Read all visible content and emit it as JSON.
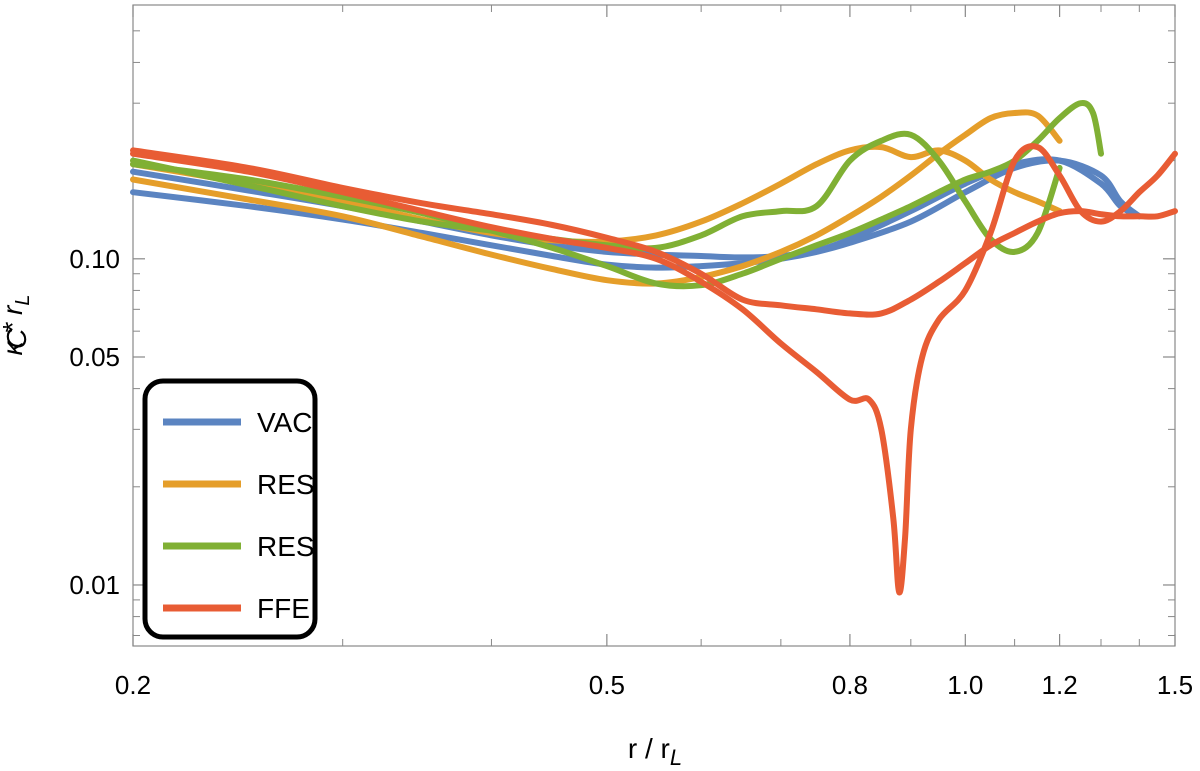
{
  "chart_data": {
    "type": "line",
    "title": "",
    "xlabel": "r / r",
    "xlabel_sub": "L",
    "ylabel": "κ * r",
    "ylabel_kappa_sub": "C",
    "ylabel_sub": "L",
    "xscale": "log",
    "yscale": "log",
    "xlim": [
      0.2,
      1.5
    ],
    "ylim": [
      0.0065,
      0.6
    ],
    "grid": false,
    "legend_position": "bottom-left",
    "x_ticks": [
      {
        "value": 0.2,
        "label": "0.2"
      },
      {
        "value": 0.5,
        "label": "0.5"
      },
      {
        "value": 0.8,
        "label": "0.8"
      },
      {
        "value": 1.0,
        "label": "1.0"
      },
      {
        "value": 1.2,
        "label": "1.2"
      },
      {
        "value": 1.5,
        "label": "1.5"
      }
    ],
    "x_minor_ticks": [
      0.3,
      0.4,
      0.6,
      0.7,
      0.9,
      1.1,
      1.3,
      1.4
    ],
    "y_ticks": [
      {
        "value": 0.01,
        "label": "0.01"
      },
      {
        "value": 0.05,
        "label": "0.05"
      },
      {
        "value": 0.1,
        "label": "0.10"
      }
    ],
    "y_minor_ticks": [
      0.007,
      0.008,
      0.009,
      0.02,
      0.03,
      0.04,
      0.06,
      0.07,
      0.08,
      0.09,
      0.2,
      0.3,
      0.4,
      0.5
    ],
    "series": [
      {
        "name": "VAC",
        "color": "#5b84c1",
        "x": [
          0.2,
          0.25,
          0.3,
          0.35,
          0.4,
          0.45,
          0.5,
          0.55,
          0.6,
          0.65,
          0.7,
          0.75,
          0.8,
          0.9,
          1.0,
          1.1,
          1.2,
          1.3,
          1.35,
          1.4
        ],
        "y": [
          0.16,
          0.145,
          0.132,
          0.12,
          0.11,
          0.102,
          0.096,
          0.094,
          0.095,
          0.097,
          0.1,
          0.105,
          0.112,
          0.13,
          0.16,
          0.19,
          0.2,
          0.18,
          0.15,
          0.135
        ]
      },
      {
        "name": "VAC",
        "color": "#5b84c1",
        "x": [
          0.2,
          0.25,
          0.3,
          0.35,
          0.4,
          0.45,
          0.5,
          0.55,
          0.6,
          0.65,
          0.7,
          0.75,
          0.8,
          0.9,
          1.0,
          1.1,
          1.2,
          1.3,
          1.35,
          1.4
        ],
        "y": [
          0.185,
          0.162,
          0.145,
          0.13,
          0.118,
          0.11,
          0.105,
          0.103,
          0.102,
          0.101,
          0.102,
          0.106,
          0.115,
          0.14,
          0.17,
          0.195,
          0.2,
          0.17,
          0.145,
          0.135
        ]
      },
      {
        "name": "RES",
        "color": "#e59e2a",
        "x": [
          0.2,
          0.25,
          0.3,
          0.35,
          0.4,
          0.45,
          0.5,
          0.55,
          0.6,
          0.65,
          0.7,
          0.75,
          0.8,
          0.85,
          0.9,
          0.95,
          1.0,
          1.05,
          1.1,
          1.15,
          1.2
        ],
        "y": [
          0.175,
          0.152,
          0.135,
          0.117,
          0.103,
          0.093,
          0.086,
          0.084,
          0.088,
          0.095,
          0.105,
          0.118,
          0.135,
          0.155,
          0.18,
          0.21,
          0.24,
          0.27,
          0.28,
          0.275,
          0.23
        ]
      },
      {
        "name": "RES",
        "color": "#e59e2a",
        "x": [
          0.2,
          0.25,
          0.3,
          0.35,
          0.4,
          0.45,
          0.5,
          0.55,
          0.6,
          0.65,
          0.7,
          0.75,
          0.8,
          0.85,
          0.9,
          0.95,
          1.0,
          1.05,
          1.1,
          1.15,
          1.2
        ],
        "y": [
          0.195,
          0.17,
          0.15,
          0.132,
          0.12,
          0.114,
          0.113,
          0.118,
          0.13,
          0.148,
          0.17,
          0.195,
          0.215,
          0.22,
          0.205,
          0.215,
          0.2,
          0.175,
          0.16,
          0.15,
          0.14
        ]
      },
      {
        "name": "RES",
        "color": "#80b034",
        "x": [
          0.2,
          0.25,
          0.3,
          0.35,
          0.4,
          0.45,
          0.5,
          0.55,
          0.6,
          0.65,
          0.7,
          0.75,
          0.8,
          0.85,
          0.9,
          0.95,
          1.0,
          1.05,
          1.1,
          1.15,
          1.2,
          1.25,
          1.28,
          1.3
        ],
        "y": [
          0.195,
          0.175,
          0.155,
          0.138,
          0.122,
          0.108,
          0.095,
          0.084,
          0.083,
          0.09,
          0.1,
          0.11,
          0.12,
          0.132,
          0.145,
          0.16,
          0.175,
          0.185,
          0.2,
          0.23,
          0.27,
          0.3,
          0.28,
          0.21
        ]
      },
      {
        "name": "RES",
        "color": "#80b034",
        "x": [
          0.2,
          0.25,
          0.3,
          0.35,
          0.4,
          0.45,
          0.5,
          0.55,
          0.6,
          0.65,
          0.7,
          0.75,
          0.8,
          0.85,
          0.9,
          0.95,
          1.0,
          1.05,
          1.1,
          1.15,
          1.2
        ],
        "y": [
          0.2,
          0.168,
          0.145,
          0.13,
          0.122,
          0.115,
          0.11,
          0.108,
          0.118,
          0.135,
          0.14,
          0.145,
          0.2,
          0.23,
          0.24,
          0.2,
          0.15,
          0.115,
          0.105,
          0.12,
          0.19
        ]
      },
      {
        "name": "FFE",
        "color": "#e85c34",
        "x": [
          0.2,
          0.25,
          0.3,
          0.35,
          0.4,
          0.45,
          0.5,
          0.55,
          0.6,
          0.65,
          0.7,
          0.75,
          0.8,
          0.83,
          0.85,
          0.87,
          0.88,
          0.89,
          0.9,
          0.92,
          0.95,
          1.0,
          1.05,
          1.1,
          1.15,
          1.2,
          1.25,
          1.3,
          1.35,
          1.4,
          1.45,
          1.5
        ],
        "y": [
          0.21,
          0.185,
          0.16,
          0.14,
          0.125,
          0.115,
          0.108,
          0.1,
          0.085,
          0.07,
          0.055,
          0.045,
          0.037,
          0.037,
          0.03,
          0.016,
          0.0095,
          0.014,
          0.03,
          0.05,
          0.065,
          0.08,
          0.12,
          0.2,
          0.22,
          0.18,
          0.14,
          0.13,
          0.14,
          0.16,
          0.18,
          0.21
        ]
      },
      {
        "name": "FFE",
        "color": "#e85c34",
        "x": [
          0.2,
          0.25,
          0.3,
          0.35,
          0.4,
          0.45,
          0.5,
          0.55,
          0.6,
          0.65,
          0.7,
          0.75,
          0.8,
          0.85,
          0.9,
          0.95,
          1.0,
          1.05,
          1.1,
          1.15,
          1.2,
          1.25,
          1.3,
          1.35,
          1.4,
          1.45,
          1.5
        ],
        "y": [
          0.215,
          0.19,
          0.165,
          0.148,
          0.137,
          0.127,
          0.116,
          0.105,
          0.09,
          0.075,
          0.072,
          0.07,
          0.068,
          0.068,
          0.075,
          0.085,
          0.097,
          0.11,
          0.12,
          0.13,
          0.138,
          0.14,
          0.137,
          0.135,
          0.135,
          0.135,
          0.14
        ]
      }
    ],
    "legend": [
      {
        "label": "VAC",
        "color": "#5b84c1"
      },
      {
        "label": "RES",
        "color": "#e59e2a"
      },
      {
        "label": "RES",
        "color": "#80b034"
      },
      {
        "label": "FFE",
        "color": "#e85c34"
      }
    ]
  }
}
